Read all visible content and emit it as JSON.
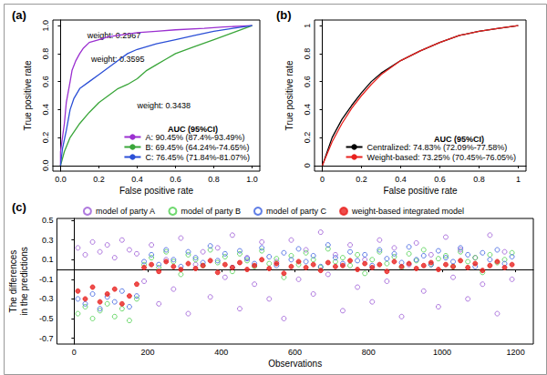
{
  "chart_data": [
    {
      "type": "line",
      "title": "(a)",
      "x_label": "False positive rate",
      "y_label": "True positive rate",
      "xlim": [
        -0.04,
        1.04
      ],
      "ylim": [
        -0.04,
        1.04
      ],
      "xticks": [
        {
          "value": 0,
          "label": "0.0"
        },
        0.2,
        0.4,
        0.6,
        0.8,
        {
          "value": 1,
          "label": "1.0"
        }
      ],
      "yticks": [
        {
          "value": 0,
          "label": "0.0"
        },
        0.2,
        0.4,
        0.6,
        0.8,
        {
          "value": 1,
          "label": "1.0"
        }
      ],
      "legend": "bottom-right",
      "legend_title": "AUC (95%CI)",
      "grid": false,
      "annotations": [
        {
          "text": "weight: 0.2967",
          "x": 0.14,
          "y": 0.93
        },
        {
          "text": "weight: 0.3595",
          "x": 0.16,
          "y": 0.76
        },
        {
          "text": "weight: 0.3438",
          "x": 0.4,
          "y": 0.43
        }
      ],
      "series": [
        {
          "name": "A: 90.45% (87.4%-93.49%)",
          "color": "#9b30d0",
          "x": [
            0,
            0,
            0.02,
            0.03,
            0.05,
            0.06,
            0.08,
            0.1,
            0.12,
            0.15,
            0.2,
            0.25,
            0.3,
            0.4,
            0.5,
            0.6,
            0.75,
            0.85,
            1
          ],
          "values": [
            0,
            0.1,
            0.3,
            0.45,
            0.6,
            0.68,
            0.75,
            0.8,
            0.84,
            0.88,
            0.9,
            0.92,
            0.93,
            0.95,
            0.96,
            0.97,
            0.98,
            0.99,
            1
          ]
        },
        {
          "name": "B: 69.45% (64.24%-74.65%)",
          "color": "#3aa63a",
          "x": [
            0,
            0.02,
            0.05,
            0.1,
            0.15,
            0.2,
            0.25,
            0.3,
            0.35,
            0.4,
            0.45,
            0.5,
            0.55,
            0.6,
            0.7,
            0.8,
            0.9,
            1
          ],
          "values": [
            0,
            0.1,
            0.2,
            0.3,
            0.38,
            0.45,
            0.5,
            0.55,
            0.58,
            0.62,
            0.68,
            0.72,
            0.76,
            0.8,
            0.85,
            0.9,
            0.95,
            1
          ]
        },
        {
          "name": "C: 76.45% (71.84%-81.07%)",
          "color": "#2b4fd6",
          "x": [
            0,
            0.01,
            0.03,
            0.05,
            0.07,
            0.1,
            0.15,
            0.2,
            0.25,
            0.3,
            0.35,
            0.4,
            0.5,
            0.6,
            0.7,
            0.8,
            0.9,
            1
          ],
          "values": [
            0,
            0.12,
            0.25,
            0.4,
            0.48,
            0.55,
            0.6,
            0.65,
            0.7,
            0.75,
            0.8,
            0.83,
            0.87,
            0.9,
            0.93,
            0.96,
            0.98,
            1
          ]
        }
      ]
    },
    {
      "type": "line",
      "title": "(b)",
      "x_label": "False positive rate",
      "y_label": "True positive rate",
      "xlim": [
        -0.04,
        1.04
      ],
      "ylim": [
        -0.04,
        1.04
      ],
      "xticks": [
        0,
        0.2,
        0.4,
        0.6,
        0.8,
        1
      ],
      "yticks": [
        0,
        0.2,
        0.4,
        0.6,
        0.8,
        1
      ],
      "legend": "bottom-right",
      "legend_title": "AUC (95%CI)",
      "grid": false,
      "series": [
        {
          "name": "Centralized: 74.83% (72.09%-77.58%)",
          "color": "#000000",
          "x": [
            0,
            0.05,
            0.1,
            0.15,
            0.2,
            0.25,
            0.3,
            0.4,
            0.5,
            0.6,
            0.7,
            0.8,
            0.9,
            1
          ],
          "values": [
            0,
            0.2,
            0.33,
            0.43,
            0.52,
            0.6,
            0.66,
            0.75,
            0.82,
            0.88,
            0.93,
            0.96,
            0.98,
            1
          ]
        },
        {
          "name": "Weight-based: 73.25% (70.45%-76.05%)",
          "color": "#e8211e",
          "x": [
            0,
            0.05,
            0.1,
            0.15,
            0.2,
            0.25,
            0.3,
            0.4,
            0.5,
            0.6,
            0.7,
            0.8,
            0.9,
            1
          ],
          "values": [
            0,
            0.17,
            0.3,
            0.41,
            0.5,
            0.58,
            0.65,
            0.75,
            0.82,
            0.88,
            0.93,
            0.96,
            0.98,
            1
          ]
        }
      ]
    },
    {
      "type": "scatter",
      "title": "(c)",
      "x_label": "Observations",
      "y_label": "The differences\nin the predictions",
      "xlim": [
        -47,
        1248
      ],
      "ylim": [
        -0.76,
        0.52
      ],
      "xticks": [
        0,
        200,
        400,
        600,
        800,
        1000,
        1200
      ],
      "yticks": [
        -0.7,
        -0.5,
        -0.3,
        -0.1,
        0.1,
        0.3,
        0.5
      ],
      "hline": 0,
      "legend": "top",
      "grid": false,
      "x": [
        10,
        30,
        50,
        70,
        90,
        110,
        130,
        150,
        170,
        190,
        210,
        230,
        250,
        270,
        290,
        310,
        330,
        350,
        370,
        390,
        410,
        430,
        450,
        470,
        490,
        510,
        530,
        550,
        570,
        590,
        610,
        630,
        650,
        670,
        690,
        710,
        730,
        750,
        770,
        790,
        810,
        830,
        850,
        870,
        890,
        910,
        930,
        950,
        970,
        990,
        1010,
        1030,
        1050,
        1070,
        1090,
        1110,
        1130,
        1150,
        1170,
        1190
      ],
      "series": [
        {
          "name": "model of party A",
          "color": "#9b59d6",
          "marker": "open_circle",
          "values": [
            0.22,
            0.15,
            0.28,
            0.18,
            0.25,
            0.12,
            0.3,
            0.2,
            0.16,
            -0.12,
            0.25,
            -0.35,
            0.1,
            -0.2,
            0.32,
            -0.45,
            0.05,
            0.18,
            -0.28,
            0.22,
            -0.08,
            0.35,
            -0.4,
            0.12,
            -0.15,
            0.28,
            -0.3,
            0.08,
            -0.5,
            0.3,
            -0.1,
            0.2,
            -0.25,
            0.38,
            -0.05,
            0.15,
            -0.42,
            0.25,
            -0.18,
            0.1,
            -0.33,
            0.3,
            -0.12,
            0.22,
            -0.48,
            0.05,
            0.27,
            -0.22,
            0.15,
            -0.38,
            0.33,
            -0.08,
            0.2,
            -0.3,
            0.12,
            -0.15,
            0.35,
            -0.45,
            0.18,
            -0.1
          ]
        },
        {
          "name": "model of party B",
          "color": "#4ccf4c",
          "marker": "open_circle",
          "values": [
            -0.45,
            -0.38,
            -0.5,
            -0.42,
            -0.35,
            -0.48,
            -0.4,
            -0.52,
            -0.3,
            0.05,
            0.12,
            0.02,
            0.18,
            0.08,
            -0.05,
            0.15,
            0.1,
            0.04,
            0.2,
            0.07,
            0.13,
            -0.02,
            0.16,
            0.09,
            0.03,
            0.19,
            0.06,
            0.11,
            -0.08,
            0.14,
            0.05,
            0.17,
            0.1,
            0.02,
            0.21,
            0.08,
            0.12,
            0.04,
            0.15,
            -0.04,
            0.1,
            0.18,
            0.06,
            0.13,
            0.02,
            0.16,
            0.09,
            0.2,
            0.05,
            0.11,
            0.14,
            0.03,
            0.18,
            0.08,
            0.12,
            -0.03,
            0.15,
            0.07,
            0.1,
            0.17
          ]
        },
        {
          "name": "model of party C",
          "color": "#3a5fe0",
          "marker": "open_circle",
          "values": [
            -0.3,
            -0.35,
            -0.25,
            -0.4,
            -0.28,
            -0.33,
            -0.22,
            -0.38,
            -0.27,
            0.08,
            0.15,
            0.05,
            0.2,
            0.1,
            0.03,
            0.18,
            0.12,
            0.07,
            0.24,
            0.09,
            0.16,
            0.02,
            0.19,
            0.11,
            0.06,
            0.22,
            0.13,
            0.04,
            0.17,
            0.1,
            0.21,
            0.08,
            0.14,
            0.03,
            0.25,
            0.12,
            0.06,
            0.18,
            0.09,
            0.15,
            0.04,
            0.2,
            0.11,
            0.16,
            0.07,
            0.23,
            0.1,
            0.14,
            0.05,
            0.19,
            0.12,
            0.08,
            0.22,
            0.15,
            0.03,
            0.17,
            0.1,
            0.2,
            0.06,
            0.13
          ]
        },
        {
          "name": "weight-based integrated model",
          "color": "#e8211e",
          "marker": "circle",
          "values": [
            -0.22,
            -0.3,
            -0.18,
            -0.33,
            -0.25,
            -0.2,
            -0.35,
            -0.27,
            -0.15,
            0.02,
            0.05,
            -0.02,
            0.08,
            0.03,
            0.0,
            0.06,
            0.01,
            0.04,
            0.09,
            -0.03,
            0.05,
            0.02,
            0.07,
            0.0,
            0.04,
            0.1,
            0.01,
            0.06,
            -0.04,
            0.03,
            0.08,
            0.02,
            0.05,
            -0.01,
            0.07,
            0.03,
            0.04,
            0.09,
            0.0,
            0.06,
            0.02,
            0.05,
            -0.02,
            0.08,
            0.03,
            0.06,
            0.01,
            0.04,
            0.07,
            0.0,
            0.05,
            0.03,
            0.09,
            0.02,
            0.06,
            -0.01,
            0.04,
            0.08,
            0.02,
            0.05
          ]
        }
      ]
    }
  ]
}
